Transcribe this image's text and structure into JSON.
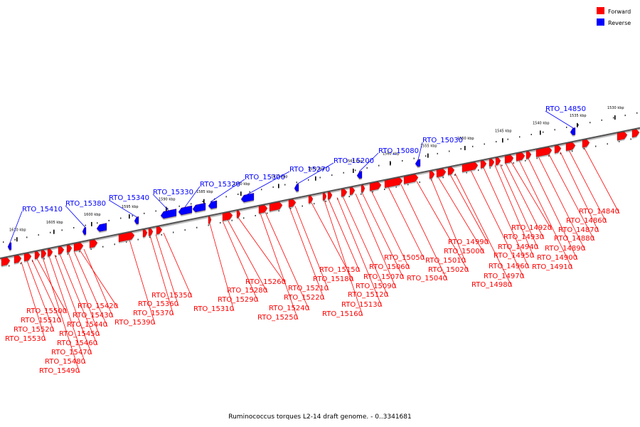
{
  "legend": {
    "forward": {
      "label": "Forward",
      "color": "#ff0000"
    },
    "reverse": {
      "label": "Reverse",
      "color": "#0000ff"
    }
  },
  "footer": "Ruminococcus torques L2-14 draft genome. - 0..3341681",
  "axis": {
    "unit": "kbp",
    "ticks": [
      "1610 kbp",
      "1605 kbp",
      "1600 kbp",
      "1595 kbp",
      "1590 kbp",
      "1585 kbp",
      "1580 kbp",
      "1575 kbp",
      "1570 kbp",
      "1565 kbp",
      "1560 kbp",
      "1555 kbp",
      "1550 kbp",
      "1545 kbp",
      "1540 kbp",
      "1535 kbp",
      "1530 kbp"
    ]
  },
  "reverse_labels": [
    "RTO_15410",
    "RTO_15380",
    "RTO_15340",
    "RTO_15330",
    "RTO_15320",
    "RTO_15300",
    "RTO_15270",
    "RTO_15200",
    "RTO_15080",
    "RTO_15030",
    "RTO_14850"
  ],
  "forward_labels": [
    "RTO_15420",
    "RTO_15430",
    "RTO_15440",
    "RTO_15450",
    "RTO_15460",
    "RTO_15470",
    "RTO_15480",
    "RTO_15490",
    "RTO_15500",
    "RTO_15510",
    "RTO_15520",
    "RTO_15530",
    "RTO_15350",
    "RTO_15360",
    "RTO_15370",
    "RTO_15390",
    "RTO_15310",
    "RTO_15260",
    "RTO_15280",
    "RTO_15290",
    "RTO_15240",
    "RTO_15250",
    "RTO_15210",
    "RTO_15220",
    "RTO_15180",
    "RTO_15150",
    "RTO_15160",
    "RTO_15120",
    "RTO_15130",
    "RTO_15090",
    "RTO_15070",
    "RTO_15060",
    "RTO_15050",
    "RTO_15040",
    "RTO_15020",
    "RTO_15010",
    "RTO_15000",
    "RTO_14990",
    "RTO_14980",
    "RTO_14970",
    "RTO_14960",
    "RTO_14950",
    "RTO_14940",
    "RTO_14930",
    "RTO_14920",
    "RTO_14910",
    "RTO_14900",
    "RTO_14890",
    "RTO_14880",
    "RTO_14870",
    "RTO_14860",
    "RTO_14840"
  ]
}
